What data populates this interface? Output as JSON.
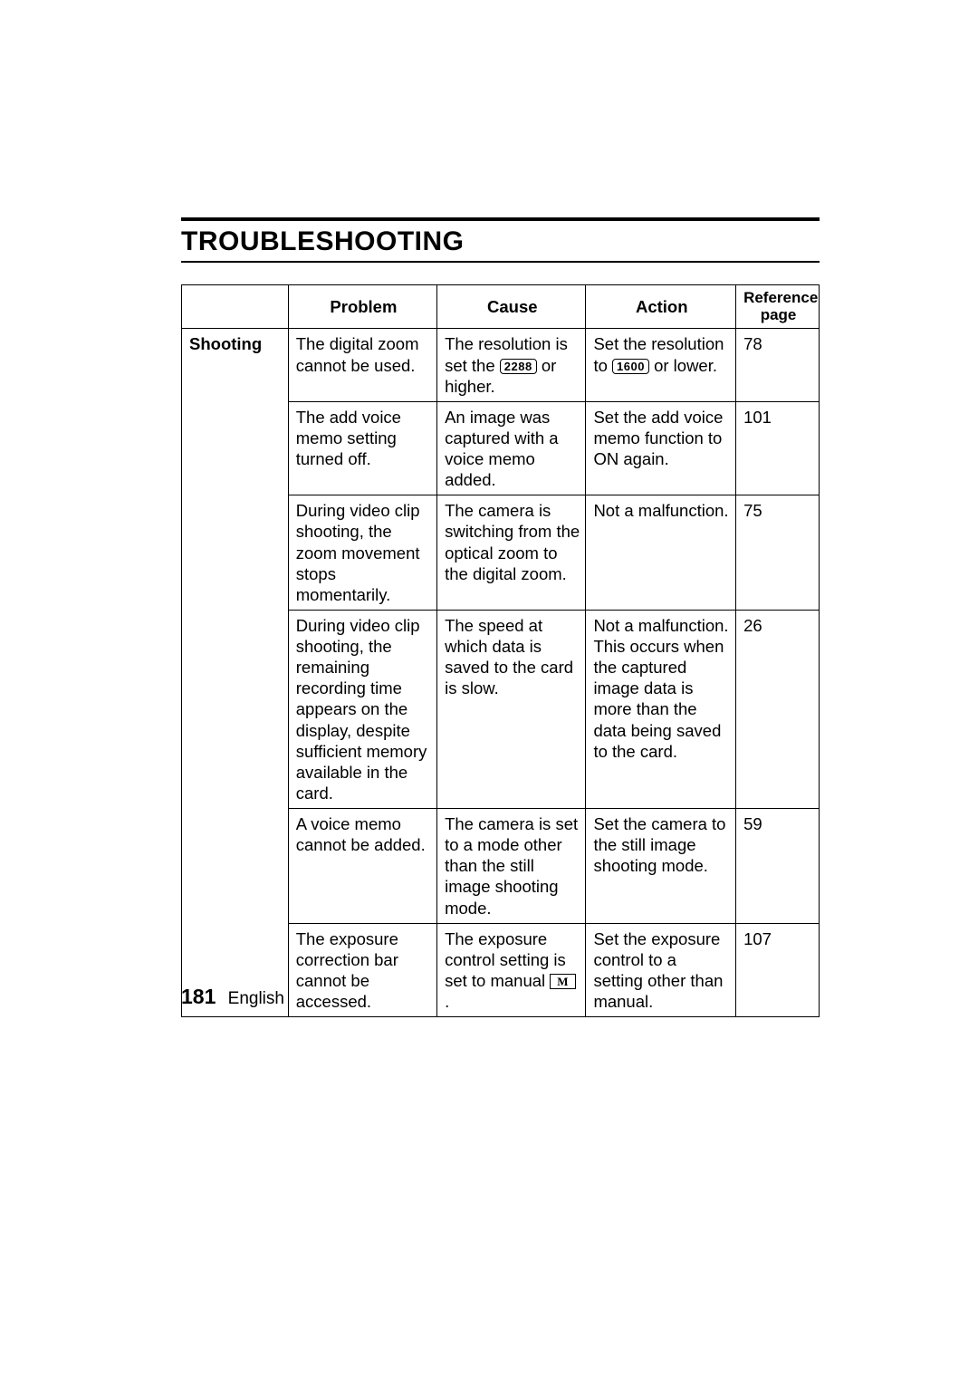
{
  "page": {
    "title": "TROUBLESHOOTING",
    "page_number": "181",
    "language_label": "English"
  },
  "table": {
    "headers": {
      "category": "",
      "problem": "Problem",
      "cause": "Cause",
      "action": "Action",
      "reference": "Reference page"
    },
    "category_label": "Shooting",
    "rows": [
      {
        "problem": "The digital zoom cannot be used.",
        "cause_pre": "The resolution is set the ",
        "cause_chip": "2288",
        "cause_post": " or higher.",
        "action_pre": "Set the resolution to ",
        "action_chip": "1600",
        "action_post": " or lower.",
        "ref": "78"
      },
      {
        "problem": "The add voice memo setting turned off.",
        "cause": "An image was captured with a voice memo added.",
        "action": "Set the add voice memo function to ON again.",
        "ref": "101"
      },
      {
        "problem": "During video clip shooting, the zoom movement stops momentarily.",
        "cause": "The camera is switching from the optical zoom to the digital zoom.",
        "action": "Not a malfunction.",
        "ref": "75"
      },
      {
        "problem": "During video clip shooting, the remaining recording time appears on the display, despite sufficient memory available in the card.",
        "cause": "The speed at which data is saved to the card is slow.",
        "action": "Not a malfunction. This occurs when the captured image data is more than the data being saved to the card.",
        "ref": "26"
      },
      {
        "problem": "A voice memo cannot be added.",
        "cause": "The camera is set to a mode other than the still image shooting mode.",
        "action": "Set the camera to the still image shooting mode.",
        "ref": "59"
      },
      {
        "problem": "The exposure correction bar cannot be accessed.",
        "cause_pre": "The exposure control setting is set to manual ",
        "cause_m": "M",
        "cause_post": ".",
        "action": "Set the exposure control to a setting other than manual.",
        "ref": "107"
      }
    ]
  }
}
